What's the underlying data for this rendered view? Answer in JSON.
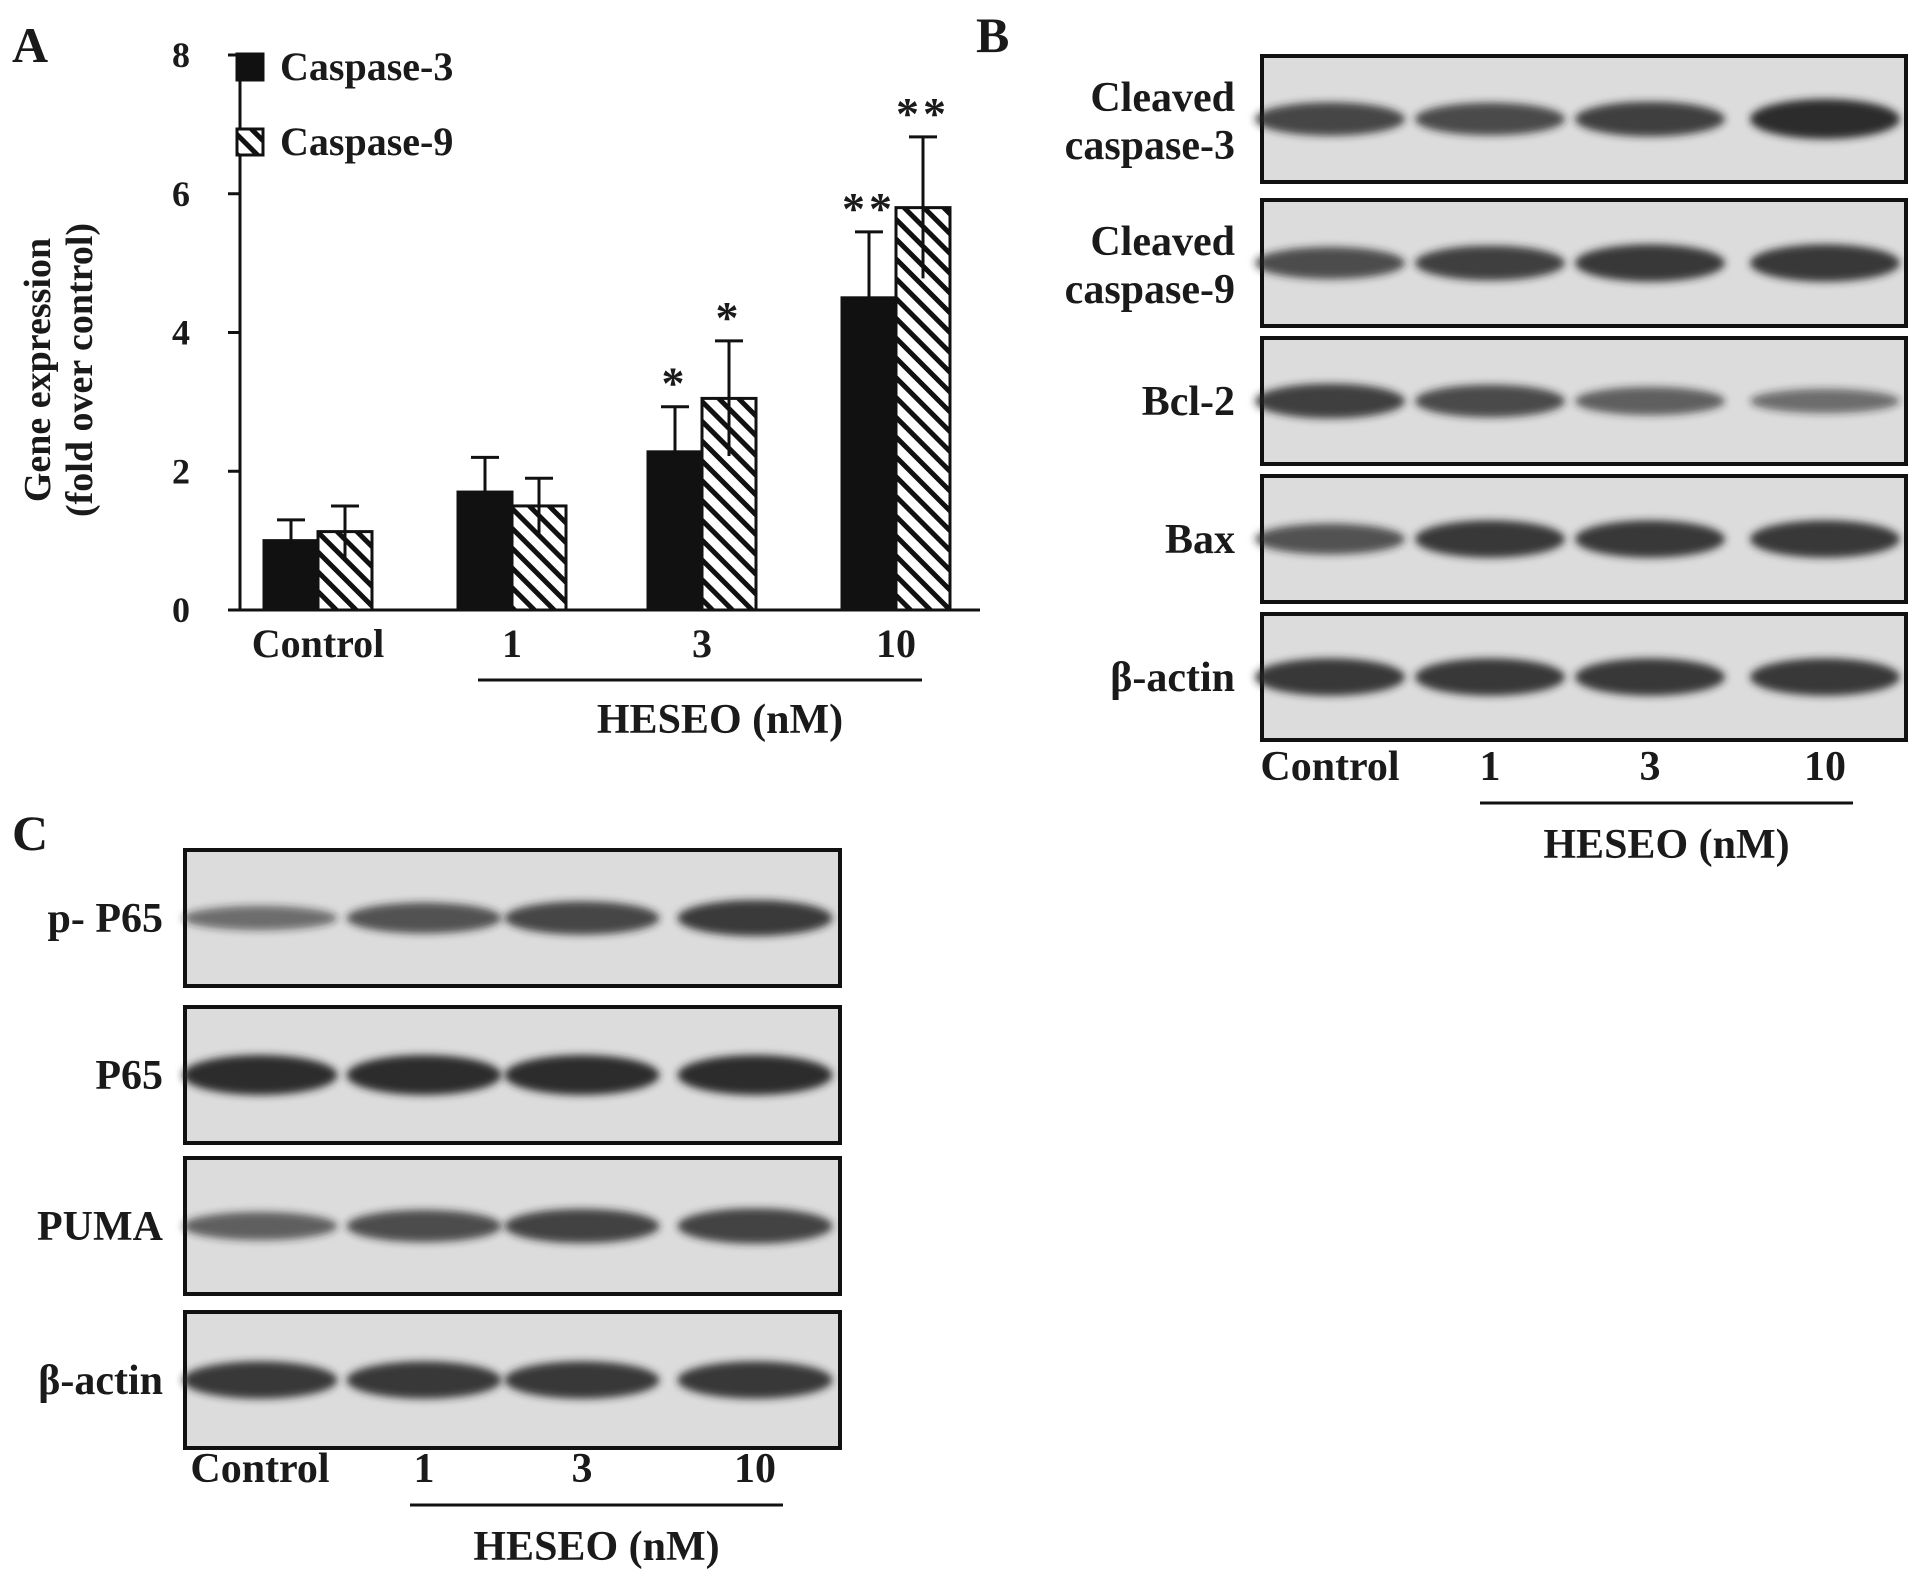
{
  "panels": {
    "A": {
      "letter": "A"
    },
    "B": {
      "letter": "B",
      "rows": [
        {
          "label_lines": [
            "Cleaved",
            "caspase-3"
          ],
          "intensity": [
            0.75,
            0.72,
            0.8,
            1.0
          ]
        },
        {
          "label_lines": [
            "Cleaved",
            "caspase-9"
          ],
          "intensity": [
            0.7,
            0.8,
            0.9,
            0.9
          ]
        },
        {
          "label_lines": [
            "Bcl-2"
          ],
          "intensity": [
            0.8,
            0.72,
            0.55,
            0.4
          ]
        },
        {
          "label_lines": [
            "Bax"
          ],
          "intensity": [
            0.65,
            0.9,
            0.9,
            0.9
          ]
        },
        {
          "label_lines": [
            "β-actin"
          ],
          "intensity": [
            0.9,
            0.9,
            0.9,
            0.9
          ]
        }
      ],
      "lanes": [
        "Control",
        "1",
        "3",
        "10"
      ],
      "group_label": "HESEO (nM)"
    },
    "C": {
      "letter": "C",
      "rows": [
        {
          "label_lines": [
            "p- P65"
          ],
          "intensity": [
            0.4,
            0.65,
            0.75,
            0.85
          ]
        },
        {
          "label_lines": [
            "P65"
          ],
          "intensity": [
            1.0,
            1.0,
            1.0,
            1.0
          ]
        },
        {
          "label_lines": [
            "PUMA"
          ],
          "intensity": [
            0.55,
            0.7,
            0.78,
            0.82
          ]
        },
        {
          "label_lines": [
            "β-actin"
          ],
          "intensity": [
            0.9,
            0.9,
            0.9,
            0.9
          ]
        }
      ],
      "lanes": [
        "Control",
        "1",
        "3",
        "10"
      ],
      "group_label": "HESEO (nM)"
    }
  },
  "chart_data": {
    "type": "bar",
    "categories": [
      "Control",
      "1",
      "3",
      "10"
    ],
    "group_label": "HESEO (nM)",
    "ylabel": "Gene expression\n(fold over control)",
    "ylim": [
      0,
      8
    ],
    "yticks": [
      0,
      2,
      4,
      6,
      8
    ],
    "legend_position": "top-left",
    "series": [
      {
        "name": "Caspase-3",
        "fill": "solid-black",
        "values": [
          1.0,
          1.7,
          2.28,
          4.5
        ],
        "errors": [
          0.3,
          0.5,
          0.65,
          0.95
        ],
        "significance": [
          "",
          "",
          "*",
          "**"
        ]
      },
      {
        "name": "Caspase-9",
        "fill": "hatched",
        "values": [
          1.13,
          1.5,
          3.05,
          5.8
        ],
        "errors": [
          0.37,
          0.4,
          0.83,
          1.02
        ],
        "significance": [
          "",
          "",
          "*",
          "**"
        ]
      }
    ]
  }
}
